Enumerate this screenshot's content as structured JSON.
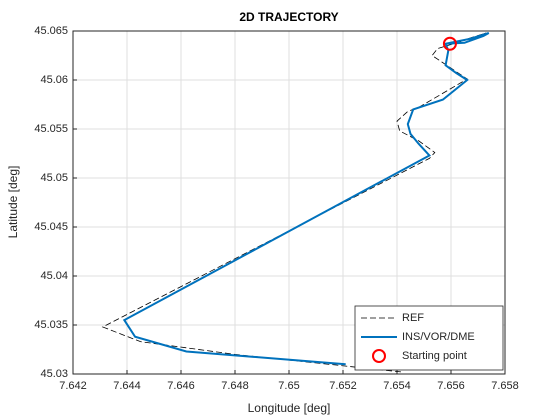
{
  "chart_data": {
    "type": "line",
    "title": "2D TRAJECTORY",
    "xlabel": "Longitude [deg]",
    "ylabel": "Latitude [deg]",
    "xlim": [
      7.642,
      7.658
    ],
    "ylim": [
      45.03,
      45.065
    ],
    "xticks": [
      7.642,
      7.644,
      7.646,
      7.648,
      7.65,
      7.652,
      7.654,
      7.656,
      7.658
    ],
    "yticks": [
      45.03,
      45.035,
      45.04,
      45.045,
      45.05,
      45.055,
      45.06,
      45.065
    ],
    "grid": true,
    "legend": "southeast",
    "series": [
      {
        "name": "REF",
        "color": "#000000",
        "style": "dashed",
        "x": [
          7.656,
          7.6565,
          7.6573,
          7.6568,
          7.6555,
          7.6553,
          7.6566,
          7.6548,
          7.6544,
          7.654,
          7.6541,
          7.6548,
          7.6554,
          7.6552,
          7.6431,
          7.6445,
          7.648,
          7.6542
        ],
        "values": [
          45.0637,
          45.0641,
          45.0648,
          45.0643,
          45.0632,
          45.0625,
          45.0601,
          45.0572,
          45.0568,
          45.0558,
          45.0548,
          45.0538,
          45.0526,
          45.052,
          45.0348,
          45.0333,
          45.032,
          45.0302
        ]
      },
      {
        "name": "INS/VOR/DME",
        "color": "#0072bd",
        "style": "solid",
        "x": [
          7.6558,
          7.6567,
          7.6574,
          7.6572,
          7.6565,
          7.6558,
          7.6559,
          7.6558,
          7.6562,
          7.6566,
          7.6557,
          7.6546,
          7.6544,
          7.6545,
          7.6548,
          7.6552,
          7.6439,
          7.6443,
          7.6462,
          7.6521
        ],
        "values": [
          45.0637,
          45.0642,
          45.0648,
          45.0645,
          45.0638,
          45.0637,
          45.063,
          45.0615,
          45.0607,
          45.06,
          45.058,
          45.057,
          45.0555,
          45.0545,
          45.0535,
          45.0523,
          45.0355,
          45.0338,
          45.0323,
          45.031
        ]
      },
      {
        "name": "Starting point",
        "color": "#ff0000",
        "style": "marker",
        "x": [
          7.65596
        ],
        "values": [
          45.0637
        ]
      }
    ]
  }
}
